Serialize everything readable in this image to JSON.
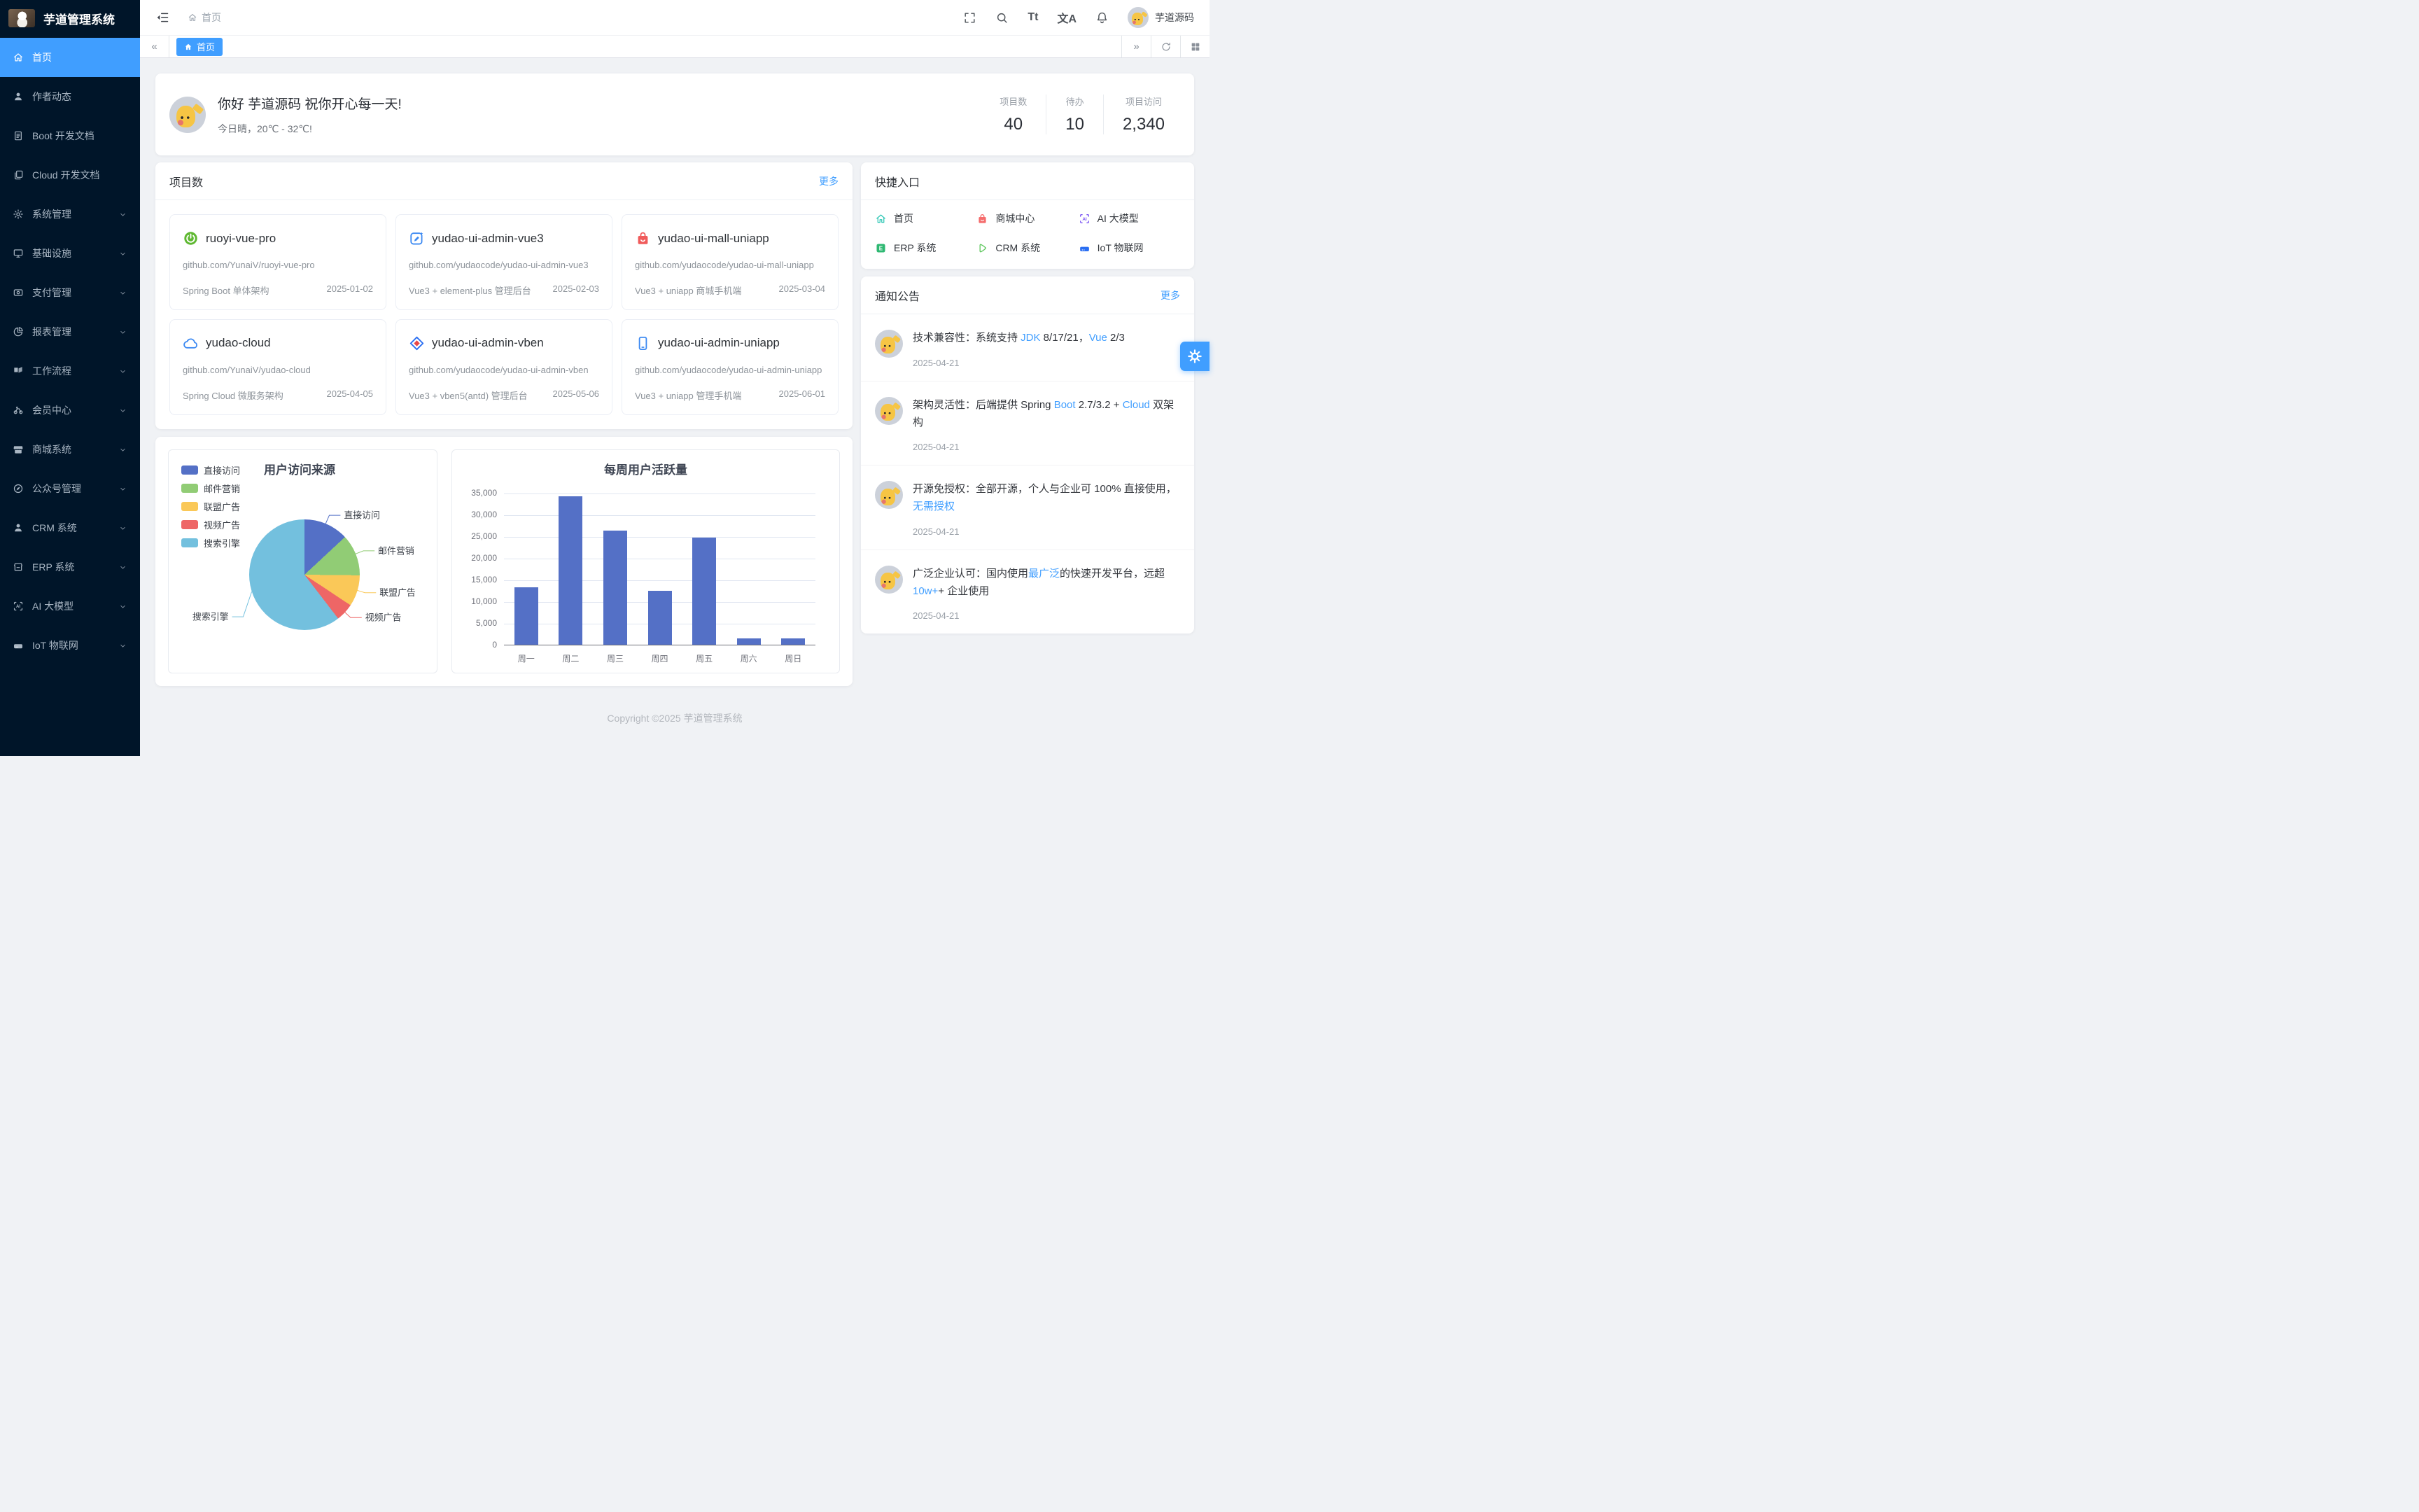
{
  "sidebar": {
    "logo_title": "芋道管理系统",
    "items": [
      {
        "label": "首页",
        "icon": "home-icon",
        "active": true,
        "has_children": false
      },
      {
        "label": "作者动态",
        "icon": "user-icon",
        "active": false,
        "has_children": false
      },
      {
        "label": "Boot 开发文档",
        "icon": "document-icon",
        "active": false,
        "has_children": false
      },
      {
        "label": "Cloud 开发文档",
        "icon": "documents-icon",
        "active": false,
        "has_children": false
      },
      {
        "label": "系统管理",
        "icon": "gear-icon",
        "active": false,
        "has_children": true
      },
      {
        "label": "基础设施",
        "icon": "monitor-icon",
        "active": false,
        "has_children": true
      },
      {
        "label": "支付管理",
        "icon": "payment-icon",
        "active": false,
        "has_children": true
      },
      {
        "label": "报表管理",
        "icon": "pie-chart-icon",
        "active": false,
        "has_children": true
      },
      {
        "label": "工作流程",
        "icon": "workflow-icon",
        "active": false,
        "has_children": true
      },
      {
        "label": "会员中心",
        "icon": "member-icon",
        "active": false,
        "has_children": true
      },
      {
        "label": "商城系统",
        "icon": "shop-icon",
        "active": false,
        "has_children": true
      },
      {
        "label": "公众号管理",
        "icon": "compass-icon",
        "active": false,
        "has_children": true
      },
      {
        "label": "CRM 系统",
        "icon": "crm-user-icon",
        "active": false,
        "has_children": true
      },
      {
        "label": "ERP 系统",
        "icon": "store-icon",
        "active": false,
        "has_children": true
      },
      {
        "label": "AI 大模型",
        "icon": "ai-icon",
        "active": false,
        "has_children": true
      },
      {
        "label": "IoT 物联网",
        "icon": "iot-icon",
        "active": false,
        "has_children": true
      }
    ]
  },
  "header": {
    "breadcrumb_label": "首页",
    "font_icon_label": "Tt",
    "lang_icon_label": "文A",
    "user_name": "芋道源码"
  },
  "tabbar": {
    "tab_label": "首页",
    "collapse_glyph": "«",
    "expand_glyph": "»"
  },
  "welcome": {
    "greeting": "你好 芋道源码 祝你开心每一天!",
    "weather": "今日晴，20℃ - 32℃!",
    "stats": [
      {
        "label": "项目数",
        "value": "40"
      },
      {
        "label": "待办",
        "value": "10"
      },
      {
        "label": "项目访问",
        "value": "2,340"
      }
    ]
  },
  "projects": {
    "title": "项目数",
    "more_label": "更多",
    "cards": [
      {
        "name": "ruoyi-vue-pro",
        "icon": "spring-icon",
        "url": "github.com/YunaiV/ruoyi-vue-pro",
        "desc": "Spring Boot 单体架构",
        "date": "2025-01-02"
      },
      {
        "name": "yudao-ui-admin-vue3",
        "icon": "vue-admin-icon",
        "url": "github.com/yudaocode/yudao-ui-admin-vue3",
        "desc": "Vue3 + element-plus 管理后台",
        "date": "2025-02-03"
      },
      {
        "name": "yudao-ui-mall-uniapp",
        "icon": "mall-bag-icon",
        "url": "github.com/yudaocode/yudao-ui-mall-uniapp",
        "desc": "Vue3 + uniapp 商城手机端",
        "date": "2025-03-04"
      },
      {
        "name": "yudao-cloud",
        "icon": "cloud-icon",
        "url": "github.com/YunaiV/yudao-cloud",
        "desc": "Spring Cloud 微服务架构",
        "date": "2025-04-05"
      },
      {
        "name": "yudao-ui-admin-vben",
        "icon": "vben-icon",
        "url": "github.com/yudaocode/yudao-ui-admin-vben",
        "desc": "Vue3 + vben5(antd) 管理后台",
        "date": "2025-05-06"
      },
      {
        "name": "yudao-ui-admin-uniapp",
        "icon": "phone-icon",
        "url": "github.com/yudaocode/yudao-ui-admin-uniapp",
        "desc": "Vue3 + uniapp 管理手机端",
        "date": "2025-06-01"
      }
    ]
  },
  "quick": {
    "title": "快捷入口",
    "items": [
      {
        "label": "首页",
        "icon": "quick-home-icon",
        "color": "#2fc7b5"
      },
      {
        "label": "商城中心",
        "icon": "quick-mall-icon",
        "color": "#f56c6c"
      },
      {
        "label": "AI 大模型",
        "icon": "quick-ai-icon",
        "color": "#7a52f4"
      },
      {
        "label": "ERP 系统",
        "icon": "quick-erp-icon",
        "color": "#2eb872"
      },
      {
        "label": "CRM 系统",
        "icon": "quick-crm-icon",
        "color": "#5ec75d"
      },
      {
        "label": "IoT 物联网",
        "icon": "quick-iot-icon",
        "color": "#2b6ff2"
      }
    ]
  },
  "notices": {
    "title": "通知公告",
    "more_label": "更多",
    "items": [
      {
        "avatar": "pikachu-avatar",
        "date": "2025-04-21",
        "parts": [
          {
            "t": "技术兼容性：系统支持 "
          },
          {
            "t": "JDK",
            "blue": true
          },
          {
            "t": " 8/17/21，"
          },
          {
            "t": "Vue",
            "blue": true
          },
          {
            "t": " 2/3"
          }
        ]
      },
      {
        "avatar": "pikachu-avatar",
        "date": "2025-04-21",
        "parts": [
          {
            "t": "架构灵活性：后端提供 Spring "
          },
          {
            "t": "Boot",
            "blue": true
          },
          {
            "t": " 2.7/3.2 + "
          },
          {
            "t": "Cloud",
            "blue": true
          },
          {
            "t": " 双架构"
          }
        ]
      },
      {
        "avatar": "pikachu-avatar",
        "date": "2025-04-21",
        "parts": [
          {
            "t": "开源免授权：全部开源，个人与企业可 100% 直接使用，"
          },
          {
            "t": "无需授权",
            "blue": true
          }
        ]
      },
      {
        "avatar": "pikachu-avatar",
        "date": "2025-04-21",
        "parts": [
          {
            "t": "广泛企业认可：国内使用"
          },
          {
            "t": "最广泛",
            "blue": true
          },
          {
            "t": "的快速开发平台，远超 "
          },
          {
            "t": "10w+",
            "blue": true
          },
          {
            "t": "+ 企业使用"
          }
        ]
      }
    ]
  },
  "chart_data": [
    {
      "type": "pie",
      "title": "用户访问来源",
      "legend_position": "left",
      "labels": [
        "直接访问",
        "邮件营销",
        "联盟广告",
        "视频广告",
        "搜索引擎"
      ],
      "values": [
        335,
        310,
        234,
        135,
        1548
      ],
      "colors": [
        "#5470c6",
        "#91cc75",
        "#fac858",
        "#ee6666",
        "#73c0de"
      ]
    },
    {
      "type": "bar",
      "title": "每周用户活跃量",
      "categories": [
        "周一",
        "周二",
        "周三",
        "周四",
        "周五",
        "周六",
        "周日"
      ],
      "values": [
        13300,
        34300,
        26300,
        12400,
        24700,
        1400,
        1400
      ],
      "ylim": [
        0,
        35000
      ],
      "y_ticks": [
        "0",
        "5,000",
        "10,000",
        "15,000",
        "20,000",
        "25,000",
        "30,000",
        "35,000"
      ],
      "bar_color": "#5470c6",
      "grid": true
    }
  ],
  "footer": {
    "text": "Copyright ©2025 芋道管理系统"
  }
}
